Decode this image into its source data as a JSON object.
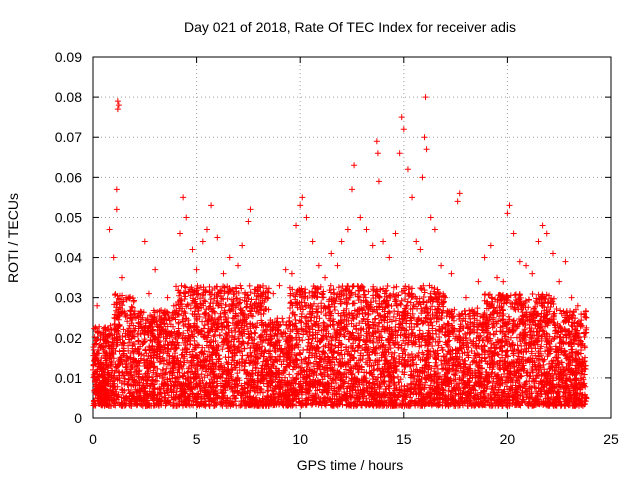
{
  "chart_data": {
    "type": "scatter",
    "title": "Day 021 of 2018, Rate Of TEC Index for receiver adis",
    "xlabel": "GPS time / hours",
    "ylabel": "ROTI / TECUs",
    "xlim": [
      0,
      25
    ],
    "ylim": [
      0,
      0.09
    ],
    "xticks": [
      0,
      5,
      10,
      15,
      20,
      25
    ],
    "xtick_labels": [
      "0",
      "5",
      "10",
      "15",
      "20",
      "25"
    ],
    "yticks": [
      0,
      0.01,
      0.02,
      0.03,
      0.04,
      0.05,
      0.06,
      0.07,
      0.08,
      0.09
    ],
    "ytick_labels": [
      "0",
      "0.01",
      "0.02",
      "0.03",
      "0.04",
      "0.05",
      "0.06",
      "0.07",
      "0.08",
      "0.09"
    ],
    "grid": true,
    "marker": "+",
    "color": "#ff0000",
    "series": [
      {
        "name": "ROTI",
        "points": [
          [
            0.0,
            0.012
          ],
          [
            0.2,
            0.028
          ],
          [
            0.4,
            0.018
          ],
          [
            0.6,
            0.022
          ],
          [
            0.8,
            0.047
          ],
          [
            1.0,
            0.04
          ],
          [
            1.15,
            0.052
          ],
          [
            1.15,
            0.057
          ],
          [
            1.2,
            0.079
          ],
          [
            1.25,
            0.078
          ],
          [
            1.2,
            0.077
          ],
          [
            1.4,
            0.035
          ],
          [
            1.7,
            0.03
          ],
          [
            2.0,
            0.026
          ],
          [
            2.3,
            0.024
          ],
          [
            2.5,
            0.044
          ],
          [
            2.7,
            0.031
          ],
          [
            3.0,
            0.037
          ],
          [
            3.3,
            0.025
          ],
          [
            3.6,
            0.03
          ],
          [
            3.9,
            0.028
          ],
          [
            4.2,
            0.046
          ],
          [
            4.35,
            0.055
          ],
          [
            4.5,
            0.05
          ],
          [
            4.8,
            0.042
          ],
          [
            5.0,
            0.037
          ],
          [
            5.3,
            0.044
          ],
          [
            5.5,
            0.047
          ],
          [
            5.7,
            0.053
          ],
          [
            6.0,
            0.045
          ],
          [
            6.3,
            0.036
          ],
          [
            6.6,
            0.04
          ],
          [
            7.0,
            0.038
          ],
          [
            7.2,
            0.043
          ],
          [
            7.5,
            0.049
          ],
          [
            7.6,
            0.052
          ],
          [
            7.8,
            0.031
          ],
          [
            8.1,
            0.028
          ],
          [
            8.4,
            0.022
          ],
          [
            8.7,
            0.031
          ],
          [
            9.0,
            0.033
          ],
          [
            9.3,
            0.037
          ],
          [
            9.6,
            0.036
          ],
          [
            9.8,
            0.048
          ],
          [
            10.0,
            0.053
          ],
          [
            10.1,
            0.055
          ],
          [
            10.3,
            0.05
          ],
          [
            10.6,
            0.044
          ],
          [
            10.9,
            0.038
          ],
          [
            11.2,
            0.035
          ],
          [
            11.5,
            0.041
          ],
          [
            11.8,
            0.038
          ],
          [
            12.0,
            0.044
          ],
          [
            12.3,
            0.047
          ],
          [
            12.5,
            0.057
          ],
          [
            12.6,
            0.063
          ],
          [
            12.9,
            0.05
          ],
          [
            13.2,
            0.047
          ],
          [
            13.5,
            0.043
          ],
          [
            13.7,
            0.069
          ],
          [
            13.75,
            0.066
          ],
          [
            13.8,
            0.059
          ],
          [
            14.0,
            0.044
          ],
          [
            14.3,
            0.04
          ],
          [
            14.6,
            0.046
          ],
          [
            14.8,
            0.066
          ],
          [
            14.9,
            0.075
          ],
          [
            15.0,
            0.072
          ],
          [
            15.2,
            0.062
          ],
          [
            15.4,
            0.055
          ],
          [
            15.6,
            0.044
          ],
          [
            15.8,
            0.042
          ],
          [
            15.9,
            0.06
          ],
          [
            16.0,
            0.07
          ],
          [
            16.05,
            0.08
          ],
          [
            16.1,
            0.067
          ],
          [
            16.3,
            0.05
          ],
          [
            16.5,
            0.047
          ],
          [
            16.8,
            0.038
          ],
          [
            17.0,
            0.03
          ],
          [
            17.3,
            0.036
          ],
          [
            17.6,
            0.054
          ],
          [
            17.7,
            0.056
          ],
          [
            18.0,
            0.03
          ],
          [
            18.3,
            0.027
          ],
          [
            18.6,
            0.034
          ],
          [
            18.9,
            0.04
          ],
          [
            19.2,
            0.043
          ],
          [
            19.5,
            0.035
          ],
          [
            19.8,
            0.034
          ],
          [
            20.0,
            0.051
          ],
          [
            20.1,
            0.053
          ],
          [
            20.3,
            0.046
          ],
          [
            20.6,
            0.039
          ],
          [
            20.9,
            0.038
          ],
          [
            21.2,
            0.036
          ],
          [
            21.5,
            0.044
          ],
          [
            21.7,
            0.048
          ],
          [
            21.9,
            0.046
          ],
          [
            22.2,
            0.041
          ],
          [
            22.5,
            0.034
          ],
          [
            22.8,
            0.039
          ],
          [
            23.1,
            0.03
          ],
          [
            23.4,
            0.028
          ],
          [
            23.7,
            0.026
          ],
          [
            23.8,
            0.022
          ]
        ]
      }
    ]
  }
}
